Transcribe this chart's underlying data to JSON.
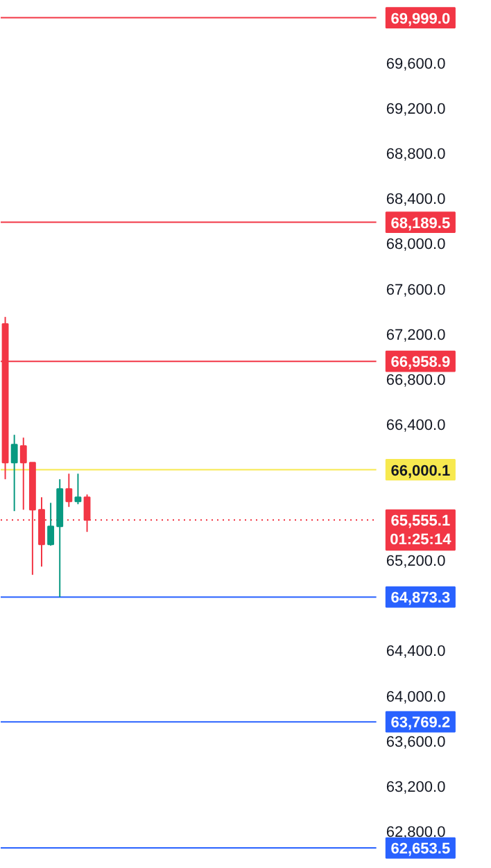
{
  "chart_data": {
    "type": "candlestick",
    "categories": [
      null,
      null,
      null,
      null,
      null,
      null,
      null,
      null,
      null,
      null,
      null,
      null,
      null,
      null,
      null,
      null,
      null,
      null,
      null,
      null,
      null,
      null,
      null,
      null,
      null,
      null,
      null,
      null,
      null,
      null,
      null,
      null,
      null,
      null,
      null,
      null,
      null,
      null,
      null,
      null,
      null,
      null,
      null,
      null,
      null,
      null,
      null,
      null,
      null,
      null,
      null,
      null,
      null,
      null
    ],
    "ohlc": [
      [
        67290,
        67352,
        65916,
        66063
      ],
      [
        66063,
        66309,
        65634,
        66223
      ],
      [
        66210,
        66284,
        65646,
        66063
      ],
      [
        66063,
        66063,
        65070,
        65646
      ],
      [
        65646,
        65757,
        65143,
        65340
      ],
      [
        65340,
        65707,
        65328,
        65499
      ],
      [
        65499,
        65916,
        64873,
        65830
      ],
      [
        65830,
        65965,
        65671,
        65720
      ],
      [
        65720,
        65965,
        65695,
        65757
      ],
      [
        65757,
        65781,
        65450,
        65555
      ],
      null,
      null,
      null,
      null,
      null,
      null,
      null,
      null,
      null,
      null,
      null,
      null,
      null,
      null,
      null,
      null,
      null,
      null,
      null,
      null,
      null,
      null,
      null,
      null,
      null,
      null,
      null,
      null,
      null,
      null,
      null,
      null,
      null,
      null,
      null,
      null,
      null,
      null,
      null,
      null,
      null,
      null,
      null,
      null
    ],
    "colors": [
      "#f23645",
      "#089981",
      "#f23645",
      "#f23645",
      "#f23645",
      "#089981",
      "#089981",
      "#f23645",
      "#089981",
      "#f23645",
      null,
      null,
      null,
      null,
      null,
      null,
      null,
      null,
      null,
      null,
      null,
      null,
      null,
      null,
      null,
      null,
      null,
      null,
      null,
      null,
      null,
      null,
      null,
      null,
      null,
      null,
      null,
      null,
      null,
      null,
      null,
      null,
      null,
      null,
      null,
      null,
      null,
      null,
      null,
      null,
      null,
      null,
      null,
      null
    ],
    "ylim": [
      62470,
      70150
    ],
    "yticks": [
      {
        "value": 62800,
        "label": "62,800.0"
      },
      {
        "value": 63200,
        "label": "63,200.0"
      },
      {
        "value": 63600,
        "label": "63,600.0"
      },
      {
        "value": 64000,
        "label": "64,000.0"
      },
      {
        "value": 64400,
        "label": "64,400.0"
      },
      {
        "value": 65200,
        "label": "65,200.0"
      },
      {
        "value": 66400,
        "label": "66,400.0"
      },
      {
        "value": 66800,
        "label": "66,800.0"
      },
      {
        "value": 67200,
        "label": "67,200.0"
      },
      {
        "value": 67600,
        "label": "67,600.0"
      },
      {
        "value": 68000,
        "label": "68,000.0"
      },
      {
        "value": 68400,
        "label": "68,400.0"
      },
      {
        "value": 68800,
        "label": "68,800.0"
      },
      {
        "value": 69200,
        "label": "69,200.0"
      },
      {
        "value": 69600,
        "label": "69,600.0"
      }
    ],
    "tick_labels": "y",
    "grid": false,
    "ref_lines": [
      {
        "axis": "y",
        "value": 69999.0,
        "label": "69,999.0",
        "color": "#f23645"
      },
      {
        "axis": "y",
        "value": 68189.5,
        "label": "68,189.5",
        "color": "#f23645"
      },
      {
        "axis": "y",
        "value": 66958.9,
        "label": "66,958.9",
        "color": "#f23645"
      },
      {
        "axis": "y",
        "value": 66000.1,
        "label": "66,000.1",
        "color": "#f7e94f"
      },
      {
        "axis": "y",
        "value": 65555.1,
        "label": "65,555.1",
        "color": "#f23645",
        "line_style": "dotted"
      },
      {
        "axis": "y",
        "value": 64873.3,
        "label": "64,873.3",
        "color": "#2962ff"
      },
      {
        "axis": "y",
        "value": 63769.2,
        "label": "63,769.2",
        "color": "#2962ff"
      },
      {
        "axis": "y",
        "value": 62653.5,
        "label": "62,653.5",
        "color": "#2962ff"
      }
    ],
    "annotations": [
      "01:25:14"
    ]
  }
}
